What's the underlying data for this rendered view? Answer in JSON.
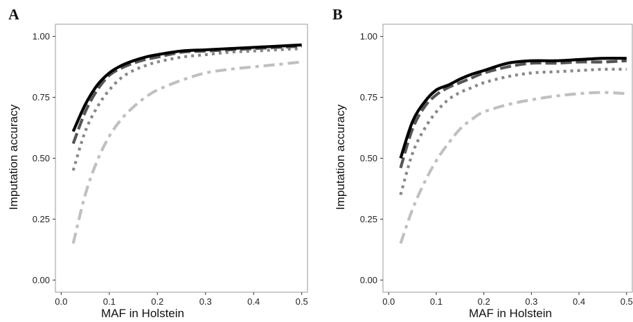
{
  "chart_data": [
    {
      "type": "line",
      "panel_label": "A",
      "xlabel": "MAF in Holstein",
      "ylabel": "Imputation accuracy",
      "xlim": [
        -0.012,
        0.512
      ],
      "ylim": [
        -0.05,
        1.05
      ],
      "xticks": [
        "0.0",
        "0.1",
        "0.2",
        "0.3",
        "0.4",
        "0.5"
      ],
      "yticks": [
        "0.00",
        "0.25",
        "0.50",
        "0.75",
        "1.00"
      ],
      "grid": false,
      "legend": "none",
      "series": [
        {
          "style": "solid",
          "color": "#000000",
          "x": [
            0.025,
            0.05,
            0.075,
            0.1,
            0.125,
            0.15,
            0.175,
            0.2,
            0.25,
            0.3,
            0.35,
            0.4,
            0.45,
            0.5
          ],
          "y": [
            0.61,
            0.72,
            0.8,
            0.85,
            0.88,
            0.9,
            0.915,
            0.925,
            0.94,
            0.945,
            0.95,
            0.955,
            0.96,
            0.965
          ]
        },
        {
          "style": "dashed",
          "color": "#555555",
          "x": [
            0.025,
            0.05,
            0.075,
            0.1,
            0.125,
            0.15,
            0.175,
            0.2,
            0.25,
            0.3,
            0.35,
            0.4,
            0.45,
            0.5
          ],
          "y": [
            0.56,
            0.69,
            0.78,
            0.84,
            0.87,
            0.89,
            0.905,
            0.915,
            0.935,
            0.94,
            0.945,
            0.95,
            0.955,
            0.96
          ]
        },
        {
          "style": "dotted",
          "color": "#888888",
          "x": [
            0.025,
            0.05,
            0.075,
            0.1,
            0.125,
            0.15,
            0.175,
            0.2,
            0.25,
            0.3,
            0.35,
            0.4,
            0.45,
            0.5
          ],
          "y": [
            0.45,
            0.61,
            0.71,
            0.78,
            0.83,
            0.86,
            0.88,
            0.895,
            0.915,
            0.925,
            0.935,
            0.94,
            0.945,
            0.95
          ]
        },
        {
          "style": "dashdot",
          "color": "#c0c0c0",
          "x": [
            0.025,
            0.05,
            0.075,
            0.1,
            0.125,
            0.15,
            0.175,
            0.2,
            0.25,
            0.3,
            0.35,
            0.4,
            0.45,
            0.5
          ],
          "y": [
            0.15,
            0.35,
            0.49,
            0.59,
            0.66,
            0.71,
            0.75,
            0.78,
            0.82,
            0.85,
            0.865,
            0.875,
            0.885,
            0.895
          ]
        }
      ]
    },
    {
      "type": "line",
      "panel_label": "B",
      "xlabel": "MAF in Holstein",
      "ylabel": "Imputation accuracy",
      "xlim": [
        -0.012,
        0.512
      ],
      "ylim": [
        -0.05,
        1.05
      ],
      "xticks": [
        "0.0",
        "0.1",
        "0.2",
        "0.3",
        "0.4",
        "0.5"
      ],
      "yticks": [
        "0.00",
        "0.25",
        "0.50",
        "0.75",
        "1.00"
      ],
      "grid": false,
      "legend": "none",
      "series": [
        {
          "style": "solid",
          "color": "#000000",
          "x": [
            0.025,
            0.05,
            0.075,
            0.1,
            0.125,
            0.15,
            0.175,
            0.2,
            0.25,
            0.3,
            0.35,
            0.4,
            0.45,
            0.5
          ],
          "y": [
            0.5,
            0.65,
            0.73,
            0.78,
            0.8,
            0.825,
            0.845,
            0.86,
            0.89,
            0.9,
            0.9,
            0.905,
            0.91,
            0.91
          ]
        },
        {
          "style": "dashed",
          "color": "#555555",
          "x": [
            0.025,
            0.05,
            0.075,
            0.1,
            0.125,
            0.15,
            0.175,
            0.2,
            0.25,
            0.3,
            0.35,
            0.4,
            0.45,
            0.5
          ],
          "y": [
            0.46,
            0.62,
            0.71,
            0.76,
            0.79,
            0.81,
            0.83,
            0.85,
            0.875,
            0.89,
            0.89,
            0.895,
            0.895,
            0.9
          ]
        },
        {
          "style": "dotted",
          "color": "#888888",
          "x": [
            0.025,
            0.05,
            0.075,
            0.1,
            0.125,
            0.15,
            0.175,
            0.2,
            0.25,
            0.3,
            0.35,
            0.4,
            0.45,
            0.5
          ],
          "y": [
            0.35,
            0.52,
            0.62,
            0.69,
            0.74,
            0.77,
            0.79,
            0.81,
            0.835,
            0.85,
            0.855,
            0.86,
            0.865,
            0.865
          ]
        },
        {
          "style": "dashdot",
          "color": "#c0c0c0",
          "x": [
            0.025,
            0.05,
            0.075,
            0.1,
            0.125,
            0.15,
            0.175,
            0.2,
            0.25,
            0.3,
            0.35,
            0.4,
            0.45,
            0.5
          ],
          "y": [
            0.15,
            0.29,
            0.4,
            0.49,
            0.56,
            0.62,
            0.66,
            0.69,
            0.72,
            0.74,
            0.755,
            0.765,
            0.77,
            0.765
          ]
        }
      ]
    }
  ]
}
